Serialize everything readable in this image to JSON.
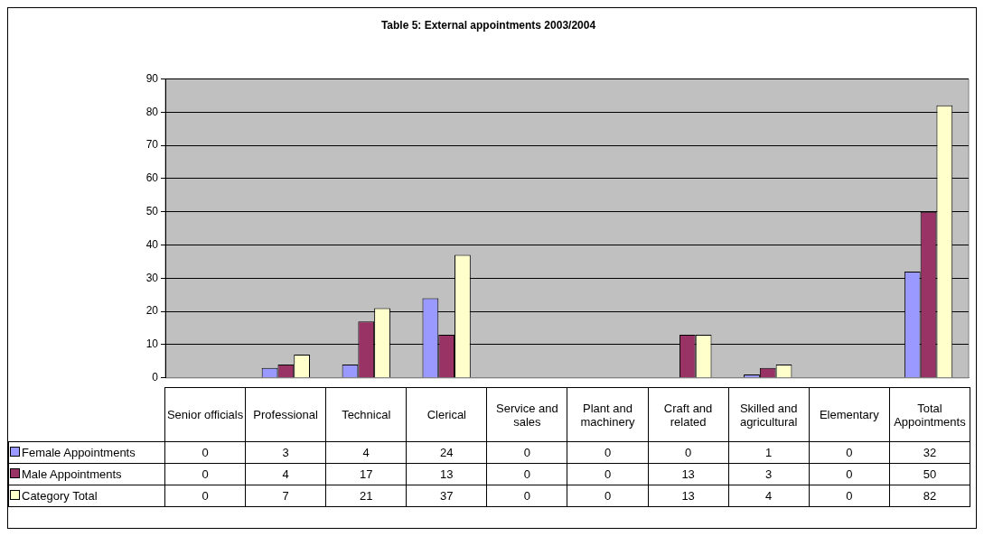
{
  "chart_data": {
    "type": "bar",
    "title": "Table 5: External appointments 2003/2004",
    "categories": [
      "Senior officials",
      "Professional",
      "Technical",
      "Clerical",
      "Service and sales",
      "Plant and machinery",
      "Craft and related",
      "Skilled and agricultural",
      "Elementary",
      "Total Appointments"
    ],
    "series": [
      {
        "name": "Female Appointments",
        "color": "#9999ff",
        "values": [
          0,
          3,
          4,
          24,
          0,
          0,
          0,
          1,
          0,
          32
        ]
      },
      {
        "name": "Male Appointments",
        "color": "#993366",
        "values": [
          0,
          4,
          17,
          13,
          0,
          0,
          13,
          3,
          0,
          50
        ]
      },
      {
        "name": "Category Total",
        "color": "#ffffcc",
        "values": [
          0,
          7,
          21,
          37,
          0,
          0,
          13,
          4,
          0,
          82
        ]
      }
    ],
    "ylim": [
      0,
      90
    ],
    "yticks": [
      0,
      10,
      20,
      30,
      40,
      50,
      60,
      70,
      80,
      90
    ],
    "grid": "y",
    "legend": "bottom left",
    "data_labels": true
  }
}
